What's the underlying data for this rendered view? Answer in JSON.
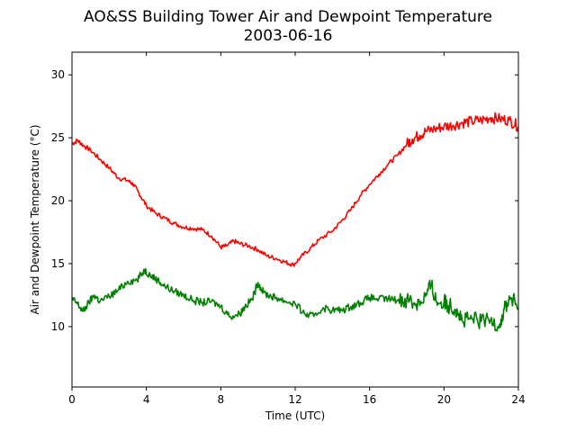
{
  "chart_data": {
    "type": "line",
    "title": "AO&SS Building Tower Air and Dewpoint Temperature",
    "subtitle": "2003-06-16",
    "xlabel": "Time (UTC)",
    "ylabel": "Air and Dewpoint Temperature (°C)",
    "xlim": [
      0,
      24
    ],
    "ylim": [
      5.2,
      31.8
    ],
    "xticks": [
      0,
      4,
      8,
      12,
      16,
      20,
      24
    ],
    "yticks": [
      10,
      15,
      20,
      25,
      30
    ],
    "grid": false,
    "series": [
      {
        "color": "#ff0000",
        "x": [
          0,
          0.3,
          0.6,
          1.0,
          1.5,
          2.0,
          2.5,
          3.0,
          3.3,
          3.6,
          4.0,
          4.5,
          5.0,
          5.5,
          6.0,
          6.5,
          7.0,
          7.5,
          8.0,
          8.3,
          8.7,
          9.0,
          9.5,
          10.0,
          10.5,
          11.0,
          11.5,
          11.9,
          12.3,
          12.8,
          13.3,
          14.0,
          14.5,
          15.0,
          15.5,
          16.0,
          16.5,
          17.0,
          17.5,
          18.0,
          18.3,
          18.7,
          19.0,
          19.5,
          20.0,
          20.5,
          21.0,
          21.5,
          22.0,
          22.5,
          23.0,
          23.5,
          24.0
        ],
        "values": [
          24.5,
          24.8,
          24.4,
          24.0,
          23.3,
          22.6,
          21.8,
          21.6,
          21.3,
          20.6,
          19.6,
          19.0,
          18.6,
          18.2,
          17.9,
          17.8,
          17.7,
          17.2,
          16.3,
          16.4,
          16.8,
          16.6,
          16.4,
          16.1,
          15.6,
          15.4,
          15.1,
          14.9,
          15.5,
          16.2,
          16.9,
          17.6,
          18.4,
          19.3,
          20.4,
          21.3,
          22.1,
          22.9,
          23.6,
          24.5,
          24.9,
          25.2,
          25.5,
          25.7,
          25.9,
          26.0,
          26.2,
          26.3,
          26.4,
          26.6,
          26.5,
          26.4,
          25.9
        ]
      },
      {
        "color": "#008000",
        "x": [
          0,
          0.3,
          0.6,
          0.9,
          1.2,
          1.5,
          2.0,
          2.5,
          3.0,
          3.5,
          3.9,
          4.2,
          4.6,
          5.0,
          5.5,
          6.0,
          6.5,
          7.0,
          7.5,
          8.0,
          8.5,
          9.0,
          9.3,
          9.7,
          10.0,
          10.3,
          10.7,
          11.0,
          11.5,
          12.0,
          12.5,
          13.0,
          13.5,
          14.0,
          14.5,
          15.0,
          15.5,
          16.0,
          16.5,
          17.0,
          17.5,
          18.0,
          18.5,
          19.0,
          19.3,
          19.6,
          20.0,
          20.3,
          20.7,
          21.0,
          21.5,
          22.0,
          22.5,
          23.0,
          23.3,
          23.6,
          24.0
        ],
        "values": [
          12.2,
          11.8,
          11.2,
          11.9,
          12.5,
          12.0,
          12.4,
          12.9,
          13.6,
          13.7,
          14.5,
          14.1,
          13.7,
          13.2,
          12.8,
          12.5,
          12.1,
          11.9,
          12.0,
          11.6,
          10.8,
          11.0,
          11.6,
          12.2,
          13.5,
          12.7,
          12.4,
          12.3,
          12.0,
          11.8,
          11.0,
          10.8,
          11.5,
          11.3,
          11.3,
          11.6,
          11.9,
          12.3,
          12.2,
          12.2,
          12.1,
          12.2,
          11.8,
          12.4,
          13.3,
          12.0,
          11.9,
          11.7,
          11.4,
          10.4,
          10.6,
          10.4,
          10.5,
          10.2,
          11.6,
          12.3,
          11.5
        ]
      }
    ]
  }
}
